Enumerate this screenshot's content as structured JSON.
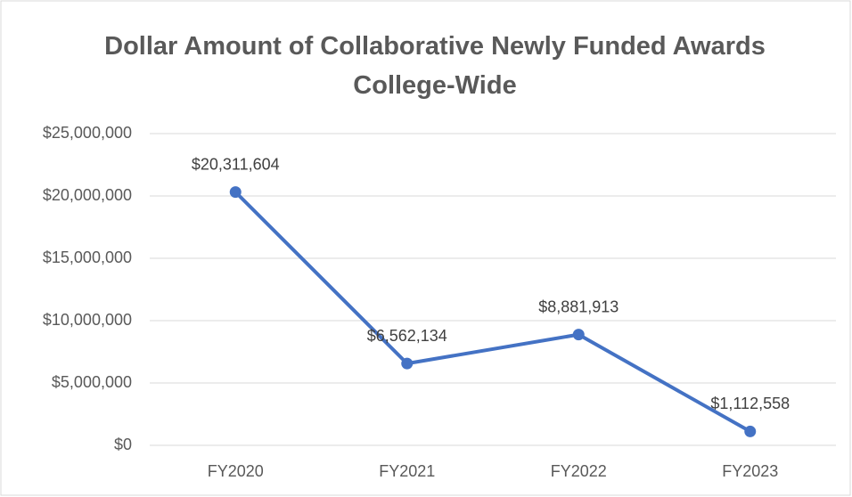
{
  "chart_data": {
    "type": "line",
    "title": "Dollar Amount of Collaborative Newly Funded Awards College-Wide",
    "categories": [
      "FY2020",
      "FY2021",
      "FY2022",
      "FY2023"
    ],
    "series": [
      {
        "name": "Dollar Amount",
        "color": "#4472c4",
        "values": [
          20311604,
          6562134,
          8881913,
          1112558
        ],
        "value_labels": [
          "$20,311,604",
          "$6,562,134",
          "$8,881,913",
          "$1,112,558"
        ]
      }
    ],
    "ylim": [
      0,
      25000000
    ],
    "yticks": [
      {
        "value": 0,
        "label": "$0"
      },
      {
        "value": 5000000,
        "label": "$5,000,000"
      },
      {
        "value": 10000000,
        "label": "$10,000,000"
      },
      {
        "value": 15000000,
        "label": "$15,000,000"
      },
      {
        "value": 20000000,
        "label": "$20,000,000"
      },
      {
        "value": 25000000,
        "label": "$25,000,000"
      }
    ],
    "grid": true
  }
}
